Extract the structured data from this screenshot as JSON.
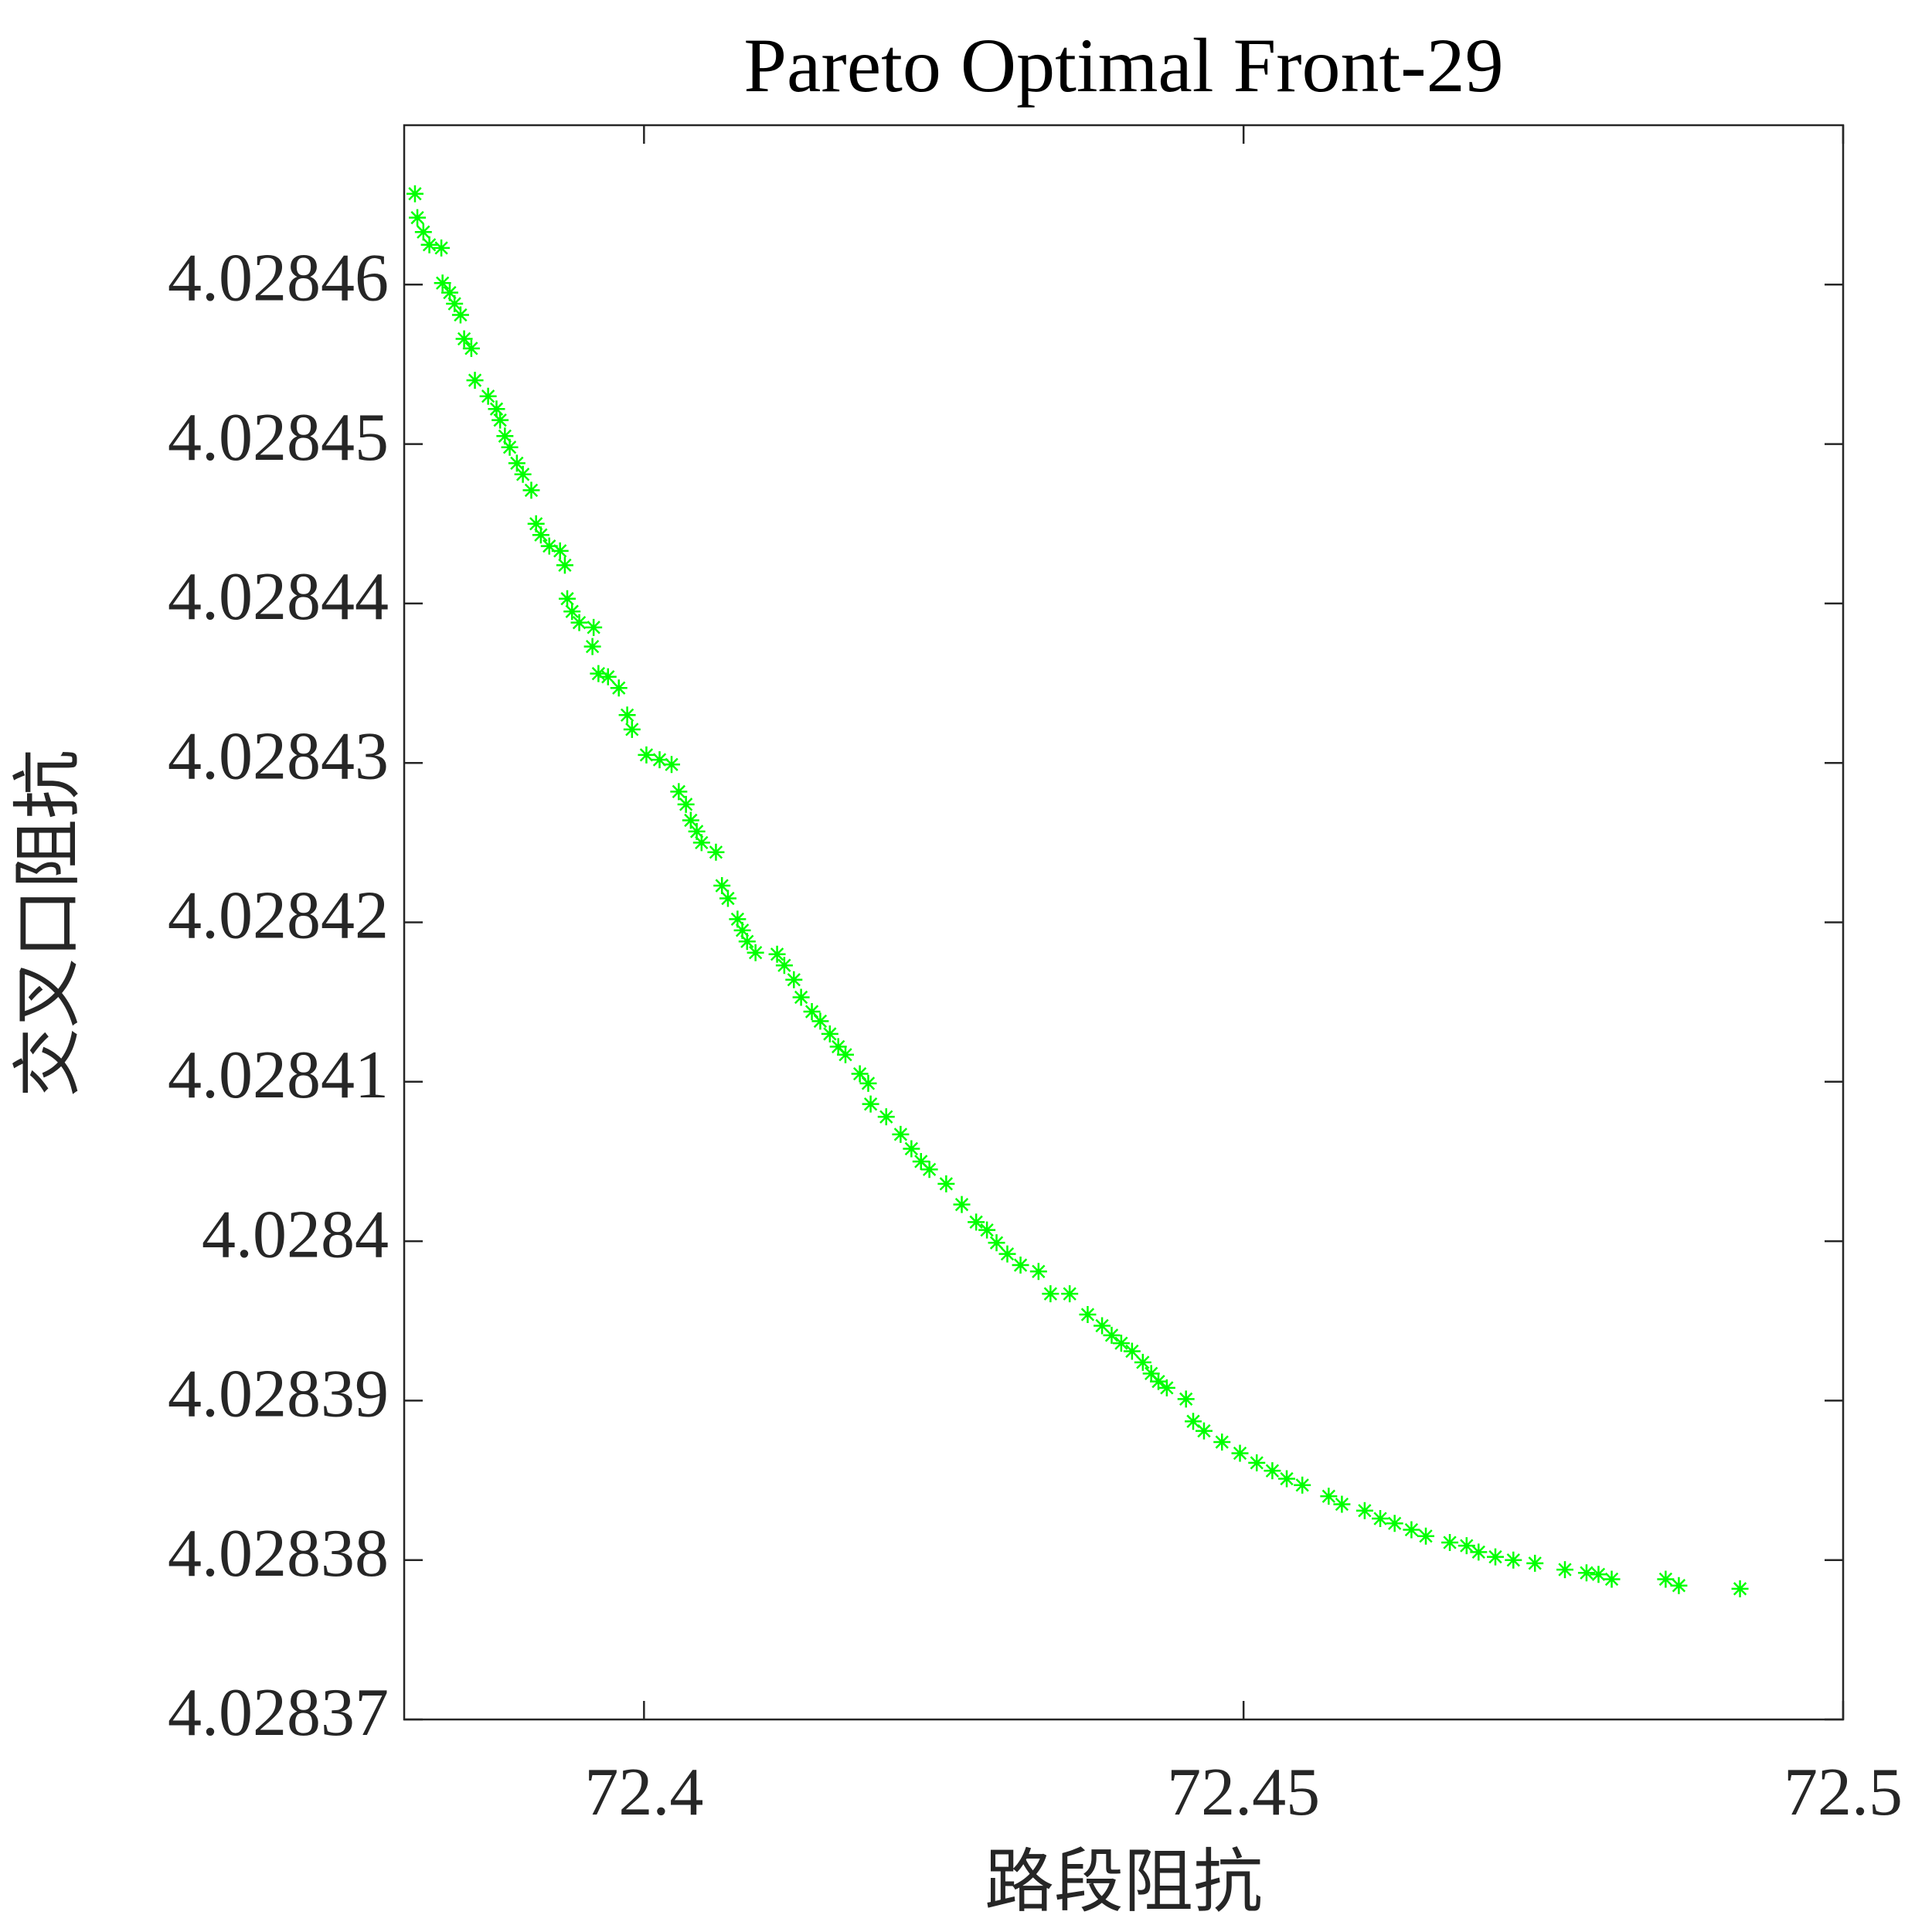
{
  "chart_data": {
    "type": "scatter",
    "title": "Pareto Optimal Front-29",
    "x_label": "路段阻抗",
    "y_label": "交叉口阻抗",
    "xlim": [
      72.38,
      72.5
    ],
    "xticks": [
      72.4,
      72.45,
      72.5
    ],
    "ylim": [
      4.02837,
      4.02847
    ],
    "yticks": [
      4.02837,
      4.02838,
      4.02839,
      4.0284,
      4.02841,
      4.02842,
      4.02843,
      4.02844,
      4.02845,
      4.02846
    ],
    "marker": "asterisk",
    "series": [
      {
        "color": "#00ff00",
        "x": [
          72.3809,
          72.3811,
          72.3816,
          72.3821,
          72.3831,
          72.3832,
          72.3838,
          72.3842,
          72.3847,
          72.385,
          72.3856,
          72.3859,
          72.387,
          72.3877,
          72.388,
          72.3884,
          72.3888,
          72.3894,
          72.3899,
          72.3906,
          72.391,
          72.3914,
          72.3921,
          72.393,
          72.3934,
          72.3936,
          72.394,
          72.3946,
          72.3958,
          72.3957,
          72.3962,
          72.397,
          72.3979,
          72.3986,
          72.399,
          72.4002,
          72.4013,
          72.4023,
          72.4029,
          72.4035,
          72.4039,
          72.4044,
          72.4048,
          72.406,
          72.4065,
          72.407,
          72.4078,
          72.4082,
          72.4086,
          72.4093,
          72.4111,
          72.4117,
          72.4125,
          72.4131,
          72.414,
          72.4147,
          72.4155,
          72.4162,
          72.4168,
          72.418,
          72.4187,
          72.4189,
          72.4202,
          72.4214,
          72.4223,
          72.4231,
          72.4238,
          72.4252,
          72.4265,
          72.4277,
          72.4286,
          72.4294,
          72.4303,
          72.4314,
          72.4329,
          72.4339,
          72.4355,
          72.437,
          72.4382,
          72.439,
          72.4398,
          72.4407,
          72.4416,
          72.4423,
          72.4429,
          72.4436,
          72.4452,
          72.4458,
          72.4467,
          72.4482,
          72.4497,
          72.4511,
          72.4524,
          72.4536,
          72.4549,
          72.4571,
          72.4582,
          72.4601,
          72.4614,
          72.4626,
          72.464,
          72.4652,
          72.4672,
          72.4686,
          72.4696,
          72.471,
          72.4725,
          72.4743,
          72.4768,
          72.4786,
          72.4796,
          72.4807,
          72.4852,
          72.4863,
          72.4914
        ],
        "values": [
          4.0284657,
          4.0284642,
          4.0284633,
          4.0284625,
          4.0284623,
          4.0284601,
          4.0284595,
          4.0284588,
          4.0284581,
          4.0284566,
          4.028456,
          4.028454,
          4.028453,
          4.0284522,
          4.0284515,
          4.0284505,
          4.0284498,
          4.0284488,
          4.0284481,
          4.0284471,
          4.028445,
          4.0284443,
          4.0284436,
          4.0284433,
          4.0284424,
          4.0284403,
          4.0284395,
          4.0284388,
          4.0284385,
          4.0284373,
          4.0284356,
          4.0284354,
          4.0284347,
          4.028433,
          4.0284321,
          4.0284305,
          4.0284302,
          4.0284299,
          4.0284282,
          4.0284274,
          4.0284264,
          4.0284257,
          4.028425,
          4.0284244,
          4.0284223,
          4.0284215,
          4.0284202,
          4.0284195,
          4.0284188,
          4.0284181,
          4.028418,
          4.0284173,
          4.0284164,
          4.0284153,
          4.0284144,
          4.0284138,
          4.028413,
          4.0284122,
          4.0284117,
          4.0284105,
          4.0284099,
          4.0284086,
          4.0284078,
          4.0284067,
          4.0284058,
          4.028405,
          4.0284045,
          4.0284036,
          4.0284023,
          4.0284012,
          4.0284007,
          4.0283999,
          4.0283992,
          4.0283985,
          4.0283981,
          4.0283967,
          4.0283967,
          4.0283954,
          4.0283947,
          4.0283941,
          4.0283936,
          4.0283931,
          4.0283924,
          4.0283917,
          4.0283912,
          4.0283908,
          4.0283901,
          4.0283887,
          4.0283881,
          4.0283874,
          4.0283867,
          4.0283861,
          4.0283856,
          4.0283851,
          4.0283847,
          4.028384,
          4.0283835,
          4.0283831,
          4.0283826,
          4.0283823,
          4.0283819,
          4.0283815,
          4.0283811,
          4.0283809,
          4.0283805,
          4.0283802,
          4.02838,
          4.0283798,
          4.0283794,
          4.0283792,
          4.0283791,
          4.0283788,
          4.0283788,
          4.0283784,
          4.0283782
        ]
      }
    ]
  }
}
